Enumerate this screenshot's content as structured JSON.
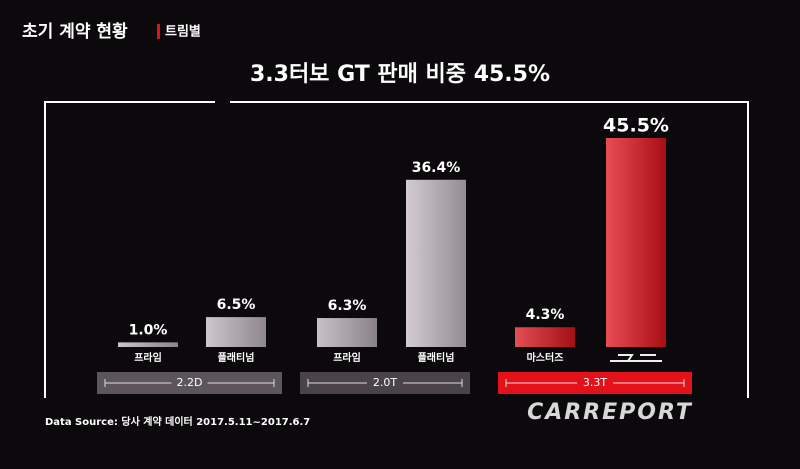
{
  "chart_data": {
    "type": "bar",
    "heading": "초기 계약 현황",
    "subheading": "트림별",
    "title": "3.3터보 GT 판매 비중 45.5%",
    "categories": [
      "프라임",
      "플래티넘",
      "프라임",
      "플래티넘",
      "마스터즈",
      null
    ],
    "values": [
      1.0,
      6.5,
      6.3,
      36.4,
      4.3,
      45.5
    ],
    "value_labels": [
      "1.0%",
      "6.5%",
      "6.3%",
      "36.4%",
      "4.3%",
      "45.5%"
    ],
    "colors": [
      "#b9b0b7",
      "#bdb4bb",
      "#b6adb4",
      "#c4bbc2",
      "#d8141c",
      "#e0121a"
    ],
    "groups": [
      {
        "label": "2.2D",
        "color": "#5c565a"
      },
      {
        "label": "2.0T",
        "color": "#4a4448"
      },
      {
        "label": "3.3T",
        "color": "#e3121a"
      }
    ],
    "source": "Data Source: 당사 계약 데이터 2017.5.11~2017.6.7",
    "watermark": "CARREPORT"
  }
}
